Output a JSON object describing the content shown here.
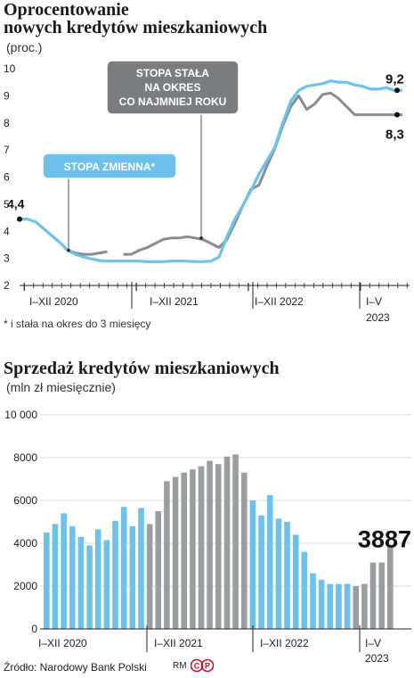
{
  "chart1": {
    "title_line1": "Oprocentowanie",
    "title_line2": "nowych kredytów mieszkaniowych",
    "subtitle": "(proc.)",
    "footnote": "* i stała na okres do 3 miesięcy"
  },
  "chart2": {
    "title": "Sprzedaż kredytów mieszkaniowych",
    "subtitle": "(mln zł miesięcznie)"
  },
  "source": "Źródło: Narodowy Bank Polski",
  "brand": "RM",
  "brand_logo": "CP",
  "colors": {
    "variable": "#6ec1ea",
    "fixed": "#9b9ea0",
    "fixed_line": "#8a8d90",
    "label_box": "#7a7d80"
  },
  "chart_data": [
    {
      "type": "line",
      "x_labels": [
        "I–XII 2020",
        "I–XII 2021",
        "I–XII 2022",
        "I–V"
      ],
      "x_label_year": "2023",
      "ylim": [
        2,
        10
      ],
      "yticks": [
        "2",
        "3",
        "4",
        "5",
        "6",
        "7",
        "8",
        "9",
        "10"
      ],
      "grid": false,
      "annotations": {
        "variable_box": "STOPA ZMIENNA*",
        "fixed_box": [
          "STOPA STAŁA",
          "NA OKRES",
          "CO NAJMNIEJ ROKU"
        ],
        "start_value": "4,4",
        "end_variable": "9,2",
        "end_fixed": "8,3"
      },
      "series": [
        {
          "name": "STOPA ZMIENNA*",
          "values": [
            4.45,
            4.45,
            4.35,
            4.1,
            3.85,
            3.6,
            3.3,
            3.15,
            3.05,
            2.98,
            2.92,
            2.9,
            2.9,
            2.9,
            2.9,
            2.9,
            2.88,
            2.88,
            2.88,
            2.9,
            2.9,
            2.9,
            2.88,
            2.88,
            2.9,
            3.05,
            3.8,
            4.45,
            4.95,
            5.5,
            6.1,
            6.6,
            7.1,
            8.0,
            8.8,
            9.2,
            9.35,
            9.4,
            9.45,
            9.55,
            9.5,
            9.5,
            9.4,
            9.35,
            9.25,
            9.25,
            9.3,
            9.2,
            9.2
          ]
        },
        {
          "name": "STOPA STAŁA NA OKRES CO NAJMNIEJ ROKU",
          "values": [
            null,
            null,
            null,
            null,
            null,
            null,
            3.3,
            3.2,
            3.15,
            3.15,
            3.2,
            3.25,
            null,
            3.15,
            3.15,
            3.3,
            3.4,
            3.55,
            3.7,
            3.75,
            3.75,
            3.8,
            3.75,
            3.7,
            3.55,
            3.4,
            3.7,
            4.3,
            4.95,
            5.55,
            5.7,
            6.4,
            7.05,
            7.9,
            8.6,
            9.0,
            8.5,
            8.7,
            9.05,
            9.1,
            8.9,
            8.6,
            8.3,
            8.3,
            8.3,
            8.3,
            8.3,
            8.3,
            8.3
          ]
        }
      ]
    },
    {
      "type": "bar",
      "x_labels": [
        "I–XII 2020",
        "I–XII 2021",
        "I–XII 2022",
        "I–V"
      ],
      "x_label_year": "2023",
      "ylim": [
        0,
        10000
      ],
      "yticks": [
        "0",
        "2000",
        "4000",
        "6000",
        "8000",
        "10 000"
      ],
      "grid": true,
      "highlight_value": "3887",
      "series": [
        {
          "name": "2020",
          "color": "blue",
          "values": [
            4500,
            4900,
            5400,
            4800,
            4300,
            3900,
            4650,
            4150,
            5050,
            5700,
            4800,
            5650
          ]
        },
        {
          "name": "2021",
          "color": "gray",
          "values": [
            4900,
            5500,
            6900,
            7100,
            7300,
            7450,
            7600,
            7850,
            7700,
            8050,
            8150,
            7300
          ]
        },
        {
          "name": "2022",
          "color": "blue",
          "values": [
            6000,
            5300,
            6250,
            5150,
            5000,
            4400,
            3600,
            2600,
            2300,
            2100,
            2100,
            2100
          ]
        },
        {
          "name": "2023",
          "color": "gray",
          "values": [
            2000,
            2100,
            3100,
            3100,
            3887
          ]
        }
      ]
    }
  ]
}
